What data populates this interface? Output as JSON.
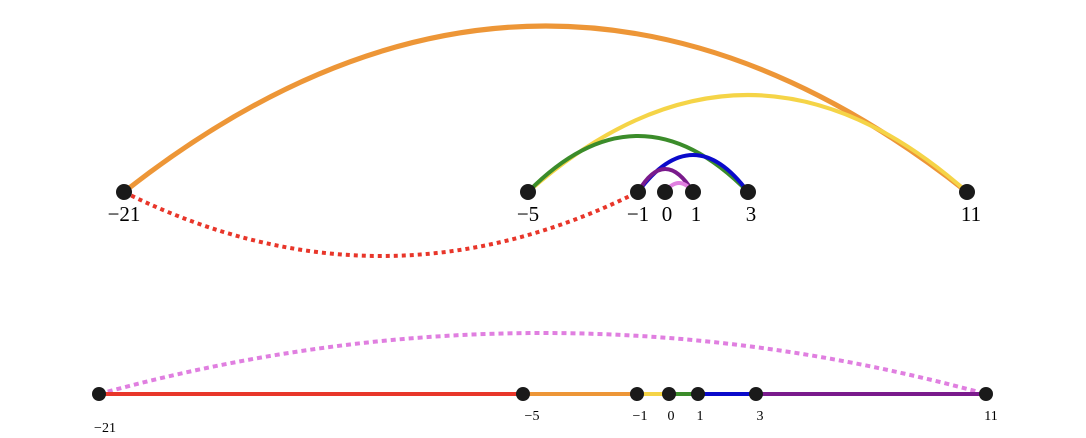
{
  "top_diagram": {
    "points": [
      {
        "id": "p-21",
        "label": "−21"
      },
      {
        "id": "p-5",
        "label": "−5"
      },
      {
        "id": "p-1",
        "label": "−1"
      },
      {
        "id": "p0",
        "label": "0"
      },
      {
        "id": "p1",
        "label": "1"
      },
      {
        "id": "p3",
        "label": "3"
      },
      {
        "id": "p11",
        "label": "11"
      }
    ],
    "arcs": [
      {
        "name": "arc-orange-neg21-to-11",
        "from": "−21",
        "to": "11",
        "color": "#ED9637",
        "style": "solid"
      },
      {
        "name": "arc-yellow-neg5-to-11",
        "from": "−5",
        "to": "11",
        "color": "#F5D447",
        "style": "solid"
      },
      {
        "name": "arc-green-neg5-to-3",
        "from": "−5",
        "to": "3",
        "color": "#3B8C2A",
        "style": "solid"
      },
      {
        "name": "arc-blue-neg1-to-3",
        "from": "−1",
        "to": "3",
        "color": "#0A0ACB",
        "style": "solid"
      },
      {
        "name": "arc-purple-neg1-to-1",
        "from": "−1",
        "to": "1",
        "color": "#7A1A8C",
        "style": "solid"
      },
      {
        "name": "arc-pink-0-to-1",
        "from": "0",
        "to": "1",
        "color": "#E07FE0",
        "style": "solid"
      },
      {
        "name": "arc-red-neg21-to-neg1",
        "from": "−21",
        "to": "−1",
        "color": "#E8362A",
        "style": "dotted"
      }
    ]
  },
  "bottom_diagram": {
    "points": [
      {
        "id": "q-21",
        "label": "−21"
      },
      {
        "id": "q-5",
        "label": "−5"
      },
      {
        "id": "q-1",
        "label": "−1"
      },
      {
        "id": "q0",
        "label": "0"
      },
      {
        "id": "q1",
        "label": "1"
      },
      {
        "id": "q3",
        "label": "3"
      },
      {
        "id": "q11",
        "label": "11"
      }
    ],
    "segments": [
      {
        "name": "segment-red",
        "from": "−21",
        "to": "−5",
        "color": "#E8362A"
      },
      {
        "name": "segment-orange",
        "from": "−5",
        "to": "−1",
        "color": "#ED9637"
      },
      {
        "name": "segment-yellow",
        "from": "−1",
        "to": "0",
        "color": "#F5D447"
      },
      {
        "name": "segment-green",
        "from": "0",
        "to": "1",
        "color": "#3B8C2A"
      },
      {
        "name": "segment-blue",
        "from": "1",
        "to": "3",
        "color": "#0A0ACB"
      },
      {
        "name": "segment-purple",
        "from": "3",
        "to": "11",
        "color": "#7A1A8C"
      }
    ],
    "arc": {
      "name": "arc-pink-dotted-neg21-to-11",
      "from": "−21",
      "to": "11",
      "color": "#E07FE0",
      "style": "dotted"
    }
  },
  "point_color": "#1a1a1a"
}
